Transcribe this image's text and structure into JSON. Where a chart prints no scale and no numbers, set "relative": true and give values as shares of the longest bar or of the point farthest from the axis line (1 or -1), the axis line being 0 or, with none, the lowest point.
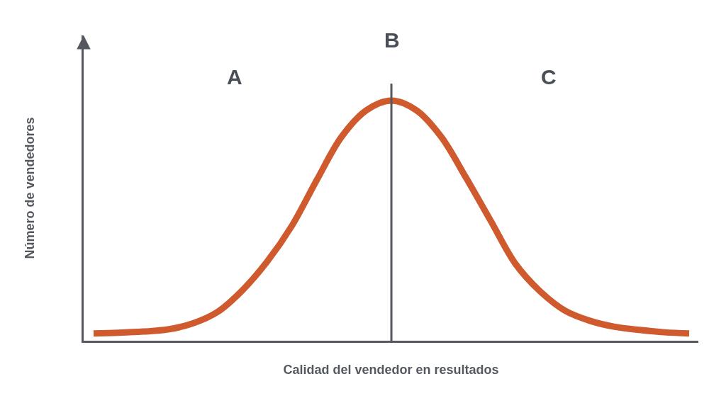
{
  "chart_data": {
    "type": "line",
    "relative": true,
    "xlabel": "Calidad del vendedor en resultados",
    "ylabel": "Número de vendedores",
    "categories": [
      null,
      null,
      null,
      null,
      null,
      null,
      null,
      null,
      null,
      null,
      null,
      null,
      null,
      null,
      null,
      null,
      null,
      null,
      null,
      null,
      null,
      null,
      null,
      null,
      null
    ],
    "series": [
      {
        "color": "#cf5a2e",
        "values": [
          0.03,
          0.033,
          0.038,
          0.047,
          0.072,
          0.12,
          0.21,
          0.33,
          0.48,
          0.67,
          0.85,
          0.96,
          1.0,
          0.96,
          0.85,
          0.68,
          0.5,
          0.32,
          0.205,
          0.125,
          0.083,
          0.058,
          0.045,
          0.035,
          0.03
        ]
      }
    ],
    "annotations": [
      "A",
      "B",
      "C"
    ],
    "line_style": "solid"
  }
}
